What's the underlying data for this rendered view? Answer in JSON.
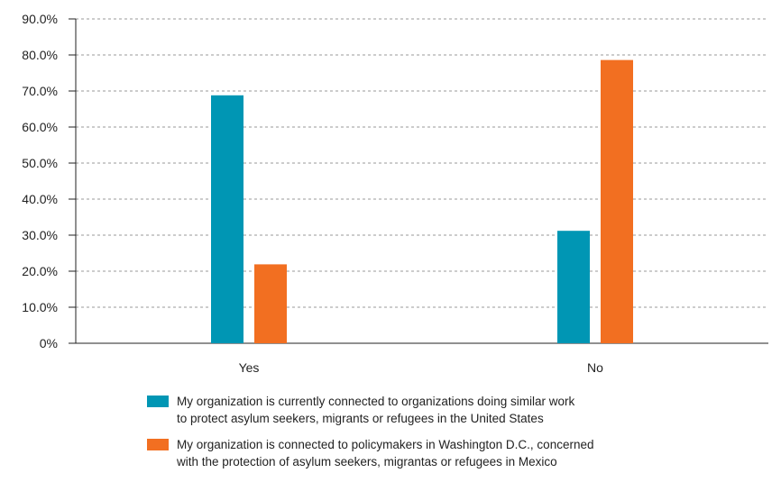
{
  "chart_data": {
    "type": "bar",
    "categories": [
      "Yes",
      "No"
    ],
    "series": [
      {
        "name": "My organization is currently connected to organizations doing similar work\nto protect asylum seekers, migrants or refugees in the United States",
        "values": [
          68.8,
          31.2
        ],
        "color": "#0096b4"
      },
      {
        "name": "My organization is connected to policymakers in Washington D.C., concerned\nwith the protection of asylum seekers, migrantas or refugees in Mexico",
        "values": [
          21.9,
          78.6
        ],
        "color": "#f26f21"
      }
    ],
    "y_ticks": [
      "0%",
      "10.0%",
      "20.0%",
      "30.0%",
      "40.0%",
      "50.0%",
      "60.0%",
      "70.0%",
      "80.0%",
      "90.0%"
    ],
    "ylim": [
      0,
      90
    ],
    "grid": true,
    "legend_position": "bottom",
    "title": "",
    "xlabel": "",
    "ylabel": ""
  }
}
